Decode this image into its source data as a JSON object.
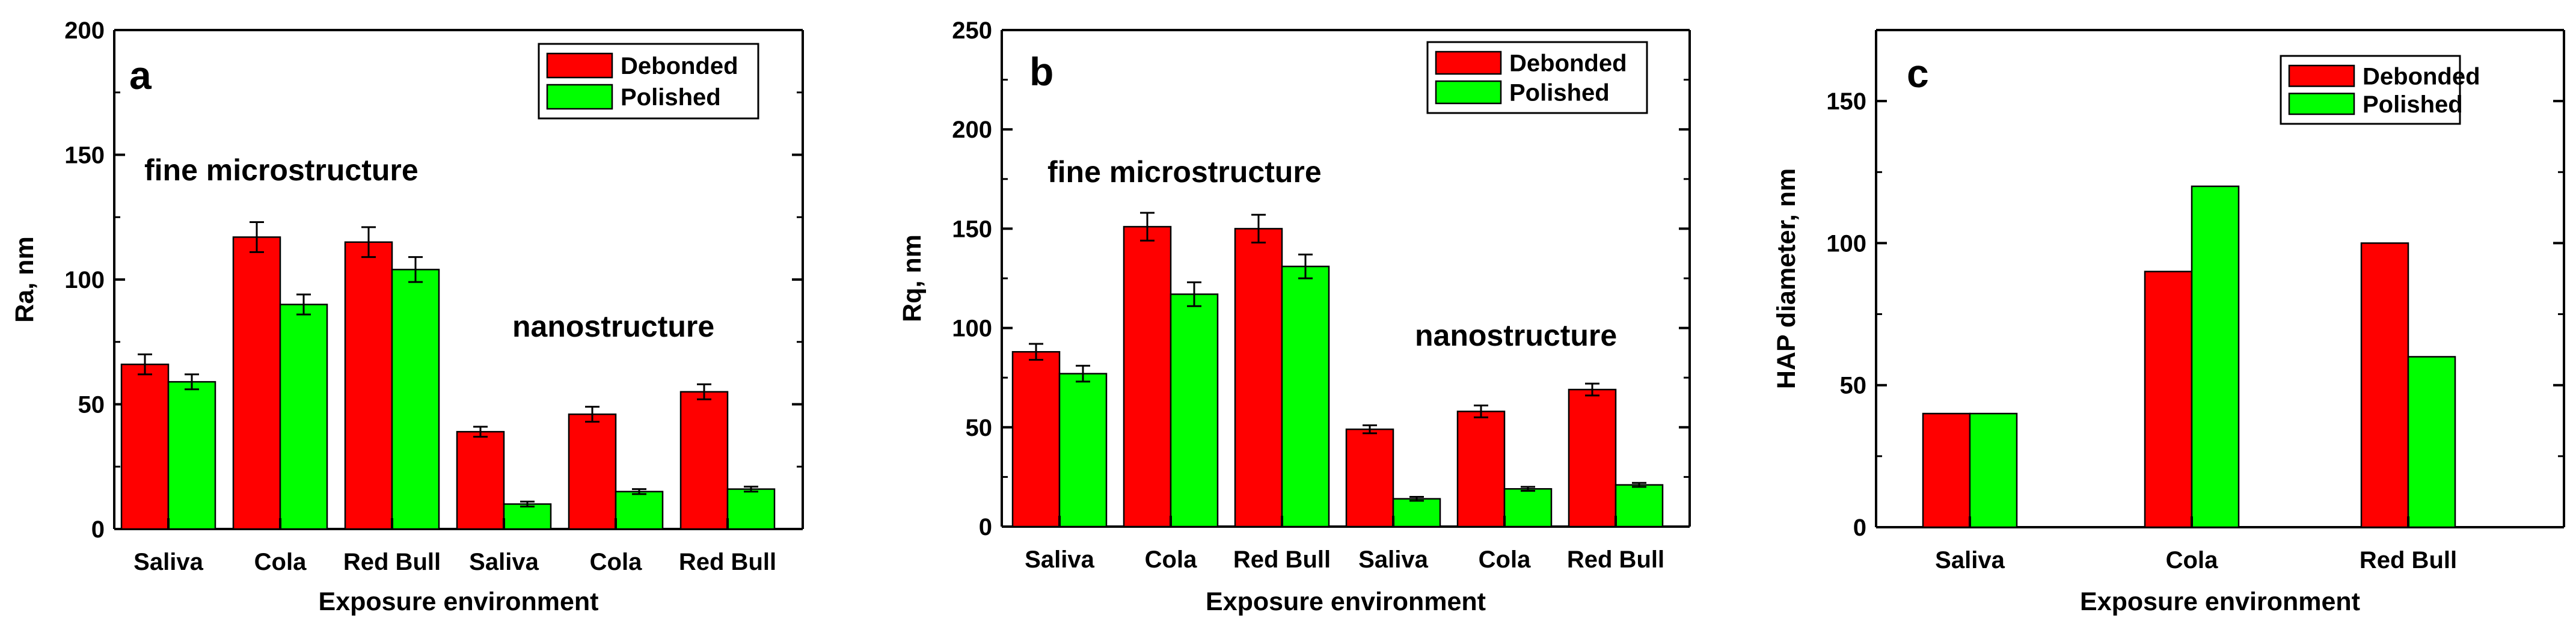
{
  "chart_data": [
    {
      "type": "bar",
      "panel_label": "a",
      "title": "",
      "xlabel": "Exposure environment",
      "ylabel": "Ra, nm",
      "ylim": [
        0,
        200
      ],
      "yticks": [
        0,
        50,
        100,
        150,
        200
      ],
      "categories": [
        "Saliva",
        "Cola",
        "Red Bull",
        "Saliva",
        "Cola",
        "Red Bull"
      ],
      "series": [
        {
          "name": "Debonded",
          "color": "#ff0000",
          "values": [
            66,
            117,
            115,
            39,
            46,
            55
          ],
          "errors": [
            4,
            6,
            6,
            2,
            3,
            3
          ]
        },
        {
          "name": "Polished",
          "color": "#00ff00",
          "values": [
            59,
            90,
            104,
            10,
            15,
            16
          ],
          "errors": [
            3,
            4,
            5,
            1,
            1,
            1
          ]
        }
      ],
      "legend_position": "top-right",
      "annotations": [
        "fine microstructure",
        "nanostructure"
      ]
    },
    {
      "type": "bar",
      "panel_label": "b",
      "title": "",
      "xlabel": "Exposure environment",
      "ylabel": "Rq, nm",
      "ylim": [
        0,
        250
      ],
      "yticks": [
        0,
        50,
        100,
        150,
        200,
        250
      ],
      "categories": [
        "Saliva",
        "Cola",
        "Red Bull",
        "Saliva",
        "Cola",
        "Red Bull"
      ],
      "series": [
        {
          "name": "Debonded",
          "color": "#ff0000",
          "values": [
            88,
            151,
            150,
            49,
            58,
            69
          ],
          "errors": [
            4,
            7,
            7,
            2,
            3,
            3
          ]
        },
        {
          "name": "Polished",
          "color": "#00ff00",
          "values": [
            77,
            117,
            131,
            14,
            19,
            21
          ],
          "errors": [
            4,
            6,
            6,
            1,
            1,
            1
          ]
        }
      ],
      "legend_position": "top-right",
      "annotations": [
        "fine microstructure",
        "nanostructure"
      ]
    },
    {
      "type": "bar",
      "panel_label": "c",
      "title": "",
      "xlabel": "Exposure environment",
      "ylabel": "HAP diameter, nm",
      "ylim": [
        0,
        175
      ],
      "yticks": [
        0,
        50,
        100,
        150
      ],
      "categories": [
        "Saliva",
        "Cola",
        "Red Bull"
      ],
      "series": [
        {
          "name": "Debonded",
          "color": "#ff0000",
          "values": [
            40,
            90,
            100
          ]
        },
        {
          "name": "Polished",
          "color": "#00ff00",
          "values": [
            40,
            120,
            60
          ]
        }
      ],
      "legend_position": "top-right",
      "annotations": []
    }
  ]
}
